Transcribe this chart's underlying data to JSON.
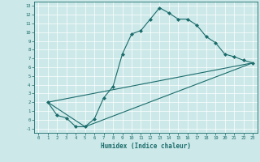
{
  "xlabel": "Humidex (Indice chaleur)",
  "bg_color": "#cce8e8",
  "line_color": "#1a6b6b",
  "xlim": [
    -0.5,
    23.5
  ],
  "ylim": [
    -1.5,
    13.5
  ],
  "xticks": [
    0,
    1,
    2,
    3,
    4,
    5,
    6,
    7,
    8,
    9,
    10,
    11,
    12,
    13,
    14,
    15,
    16,
    17,
    18,
    19,
    20,
    21,
    22,
    23
  ],
  "yticks": [
    -1,
    0,
    1,
    2,
    3,
    4,
    5,
    6,
    7,
    8,
    9,
    10,
    11,
    12,
    13
  ],
  "series": [
    [
      1,
      2
    ],
    [
      2,
      0.5
    ],
    [
      3,
      0.2
    ],
    [
      4,
      -0.8
    ],
    [
      5,
      -0.8
    ],
    [
      6,
      0.1
    ],
    [
      7,
      2.5
    ],
    [
      8,
      3.8
    ],
    [
      9,
      7.5
    ],
    [
      10,
      9.8
    ],
    [
      11,
      10.2
    ],
    [
      12,
      11.5
    ],
    [
      13,
      12.8
    ],
    [
      14,
      12.2
    ],
    [
      15,
      11.5
    ],
    [
      16,
      11.5
    ],
    [
      17,
      10.8
    ],
    [
      18,
      9.5
    ],
    [
      19,
      8.8
    ],
    [
      20,
      7.5
    ],
    [
      21,
      7.2
    ],
    [
      22,
      6.8
    ],
    [
      23,
      6.5
    ]
  ],
  "series2": [
    [
      1,
      2
    ],
    [
      23,
      6.5
    ]
  ],
  "series3": [
    [
      1,
      2
    ],
    [
      5,
      -0.8
    ],
    [
      23,
      6.5
    ]
  ]
}
